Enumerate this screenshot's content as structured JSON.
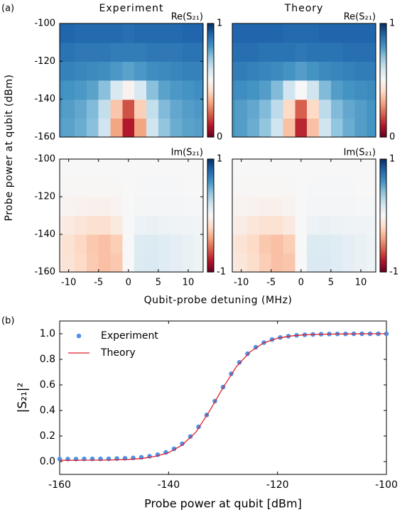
{
  "panel_labels": [
    "(a)",
    "(b)"
  ],
  "chart_data": [
    {
      "type": "heatmap",
      "title": "Experiment",
      "label": "Re(S₂₁)",
      "ylabel": "Probe power at qubit (dBm)",
      "colormap": "RdBu",
      "x": [
        -12,
        -10,
        -8,
        -6,
        -4,
        -2,
        0,
        2,
        4,
        6,
        8,
        10,
        12
      ],
      "y": [
        -155,
        -145,
        -135,
        -125,
        -115,
        -105
      ],
      "xlim": [
        -11.5,
        12.5
      ],
      "ylim": [
        -160,
        -100
      ],
      "yticks": [
        -100,
        -120,
        -140,
        -160
      ],
      "clim": [
        0,
        1
      ],
      "cticks": [
        0,
        1
      ],
      "z": [
        [
          0.78,
          0.77,
          0.75,
          0.71,
          0.6,
          0.3,
          0.1,
          0.3,
          0.6,
          0.7,
          0.75,
          0.77,
          0.78
        ],
        [
          0.79,
          0.78,
          0.76,
          0.72,
          0.62,
          0.36,
          0.18,
          0.38,
          0.62,
          0.72,
          0.76,
          0.78,
          0.79
        ],
        [
          0.81,
          0.8,
          0.79,
          0.77,
          0.71,
          0.58,
          0.48,
          0.58,
          0.71,
          0.77,
          0.79,
          0.8,
          0.81
        ],
        [
          0.84,
          0.84,
          0.83,
          0.82,
          0.81,
          0.79,
          0.77,
          0.79,
          0.81,
          0.82,
          0.83,
          0.84,
          0.84
        ],
        [
          0.87,
          0.87,
          0.86,
          0.86,
          0.86,
          0.85,
          0.85,
          0.85,
          0.86,
          0.86,
          0.86,
          0.87,
          0.87
        ],
        [
          0.9,
          0.9,
          0.89,
          0.89,
          0.89,
          0.89,
          0.88,
          0.89,
          0.89,
          0.89,
          0.89,
          0.9,
          0.9
        ]
      ]
    },
    {
      "type": "heatmap",
      "title": "Theory",
      "label": "Re(S₂₁)",
      "colormap": "RdBu",
      "x": [
        -12,
        -10,
        -8,
        -6,
        -4,
        -2,
        0,
        2,
        4,
        6,
        8,
        10,
        12
      ],
      "y": [
        -155,
        -145,
        -135,
        -125,
        -115,
        -105
      ],
      "xlim": [
        -11.5,
        12.5
      ],
      "ylim": [
        -160,
        -100
      ],
      "clim": [
        0,
        1
      ],
      "cticks": [
        0,
        1
      ],
      "z": [
        [
          0.8,
          0.78,
          0.75,
          0.7,
          0.6,
          0.35,
          0.12,
          0.35,
          0.6,
          0.7,
          0.75,
          0.78,
          0.8
        ],
        [
          0.8,
          0.78,
          0.76,
          0.72,
          0.63,
          0.4,
          0.2,
          0.4,
          0.63,
          0.72,
          0.76,
          0.78,
          0.8
        ],
        [
          0.82,
          0.81,
          0.8,
          0.78,
          0.72,
          0.6,
          0.5,
          0.6,
          0.72,
          0.78,
          0.8,
          0.81,
          0.82
        ],
        [
          0.85,
          0.85,
          0.84,
          0.83,
          0.82,
          0.8,
          0.78,
          0.8,
          0.82,
          0.83,
          0.84,
          0.85,
          0.85
        ],
        [
          0.88,
          0.88,
          0.88,
          0.87,
          0.87,
          0.87,
          0.86,
          0.87,
          0.87,
          0.87,
          0.88,
          0.88,
          0.88
        ],
        [
          0.9,
          0.9,
          0.9,
          0.9,
          0.9,
          0.89,
          0.89,
          0.89,
          0.9,
          0.9,
          0.9,
          0.9,
          0.9
        ]
      ]
    },
    {
      "type": "heatmap",
      "label": "Im(S₂₁)",
      "xlabel": "Qubit-probe detuning (MHz)",
      "colormap": "RdBu",
      "x": [
        -12,
        -10,
        -8,
        -6,
        -4,
        -2,
        0,
        2,
        4,
        6,
        8,
        10,
        12
      ],
      "y": [
        -155,
        -145,
        -135,
        -125,
        -115,
        -105
      ],
      "xlim": [
        -11.5,
        12.5
      ],
      "ylim": [
        -160,
        -100
      ],
      "xticks": [
        -10,
        -5,
        0,
        5,
        10
      ],
      "yticks": [
        -100,
        -120,
        -140,
        -160
      ],
      "clim": [
        -1,
        1
      ],
      "cticks": [
        -1,
        1
      ],
      "z": [
        [
          -0.1,
          -0.14,
          -0.2,
          -0.26,
          -0.3,
          -0.27,
          0,
          0.14,
          0.15,
          0.12,
          0.1,
          0.07,
          0.05
        ],
        [
          -0.11,
          -0.15,
          -0.21,
          -0.27,
          -0.3,
          -0.25,
          0,
          0.13,
          0.14,
          0.12,
          0.1,
          0.07,
          0.05
        ],
        [
          -0.06,
          -0.09,
          -0.13,
          -0.16,
          -0.16,
          -0.1,
          0,
          0.06,
          0.07,
          0.06,
          0.05,
          0.04,
          0.03
        ],
        [
          -0.02,
          -0.03,
          -0.04,
          -0.05,
          -0.05,
          -0.03,
          0,
          0.02,
          0.02,
          0.02,
          0.02,
          0.01,
          0.01
        ],
        [
          -0.01,
          -0.01,
          -0.01,
          -0.01,
          -0.01,
          -0.01,
          0,
          0.01,
          0.01,
          0.01,
          0.01,
          0,
          0
        ],
        [
          0,
          0,
          0,
          0,
          0,
          0,
          0,
          0,
          0,
          0,
          0,
          0,
          0
        ]
      ]
    },
    {
      "type": "heatmap",
      "label": "Im(S₂₁)",
      "colormap": "RdBu",
      "x": [
        -12,
        -10,
        -8,
        -6,
        -4,
        -2,
        0,
        2,
        4,
        6,
        8,
        10,
        12
      ],
      "y": [
        -155,
        -145,
        -135,
        -125,
        -115,
        -105
      ],
      "xlim": [
        -11.5,
        12.5
      ],
      "ylim": [
        -160,
        -100
      ],
      "xticks": [
        -10,
        -5,
        0,
        5,
        10
      ],
      "clim": [
        -1,
        1
      ],
      "cticks": [
        -1,
        1
      ],
      "z": [
        [
          -0.08,
          -0.12,
          -0.18,
          -0.25,
          -0.3,
          -0.28,
          0,
          0.15,
          0.15,
          0.12,
          0.1,
          0.07,
          0.05
        ],
        [
          -0.1,
          -0.14,
          -0.2,
          -0.27,
          -0.3,
          -0.25,
          0,
          0.14,
          0.14,
          0.12,
          0.1,
          0.07,
          0.05
        ],
        [
          -0.05,
          -0.08,
          -0.12,
          -0.15,
          -0.15,
          -0.1,
          0,
          0.06,
          0.07,
          0.06,
          0.05,
          0.04,
          0.03
        ],
        [
          -0.02,
          -0.03,
          -0.04,
          -0.05,
          -0.05,
          -0.03,
          0,
          0.02,
          0.02,
          0.02,
          0.02,
          0.01,
          0.01
        ],
        [
          -0.01,
          -0.01,
          -0.01,
          -0.01,
          -0.01,
          -0.01,
          0,
          0.01,
          0.01,
          0.01,
          0.01,
          0,
          0
        ],
        [
          0,
          0,
          0,
          0,
          0,
          0,
          0,
          0,
          0,
          0,
          0,
          0,
          0
        ]
      ]
    },
    {
      "type": "combo",
      "xlabel": "Probe power at qubit [dBm]",
      "ylabel": "|S₂₁|²",
      "legend": "upper left",
      "xlim": [
        -160,
        -100
      ],
      "ylim": [
        -0.1,
        1.1
      ],
      "xticks": [
        -160,
        -140,
        -120,
        -100
      ],
      "yticks": [
        {
          "value": 0,
          "label": "0.0"
        },
        0.2,
        0.4,
        0.6,
        0.8,
        {
          "value": 1,
          "label": "1.0"
        }
      ],
      "series": [
        {
          "name": "Experiment",
          "type": "scatter",
          "color": "#4d94e8",
          "x": [
            -160,
            -158.5,
            -157,
            -155.5,
            -154,
            -152.5,
            -151,
            -149.5,
            -148,
            -146.5,
            -145,
            -143.5,
            -142,
            -140.5,
            -139,
            -137.5,
            -136,
            -134.5,
            -133,
            -131.5,
            -130,
            -128.5,
            -127,
            -125.5,
            -124,
            -122.5,
            -121,
            -119.5,
            -118,
            -116.5,
            -115,
            -113.5,
            -112,
            -110.5,
            -109,
            -107.5,
            -106,
            -104.5,
            -103,
            -101.5,
            -100
          ],
          "values": [
            0.02,
            0.02,
            0.02,
            0.021,
            0.021,
            0.021,
            0.022,
            0.024,
            0.026,
            0.029,
            0.034,
            0.042,
            0.054,
            0.072,
            0.1,
            0.14,
            0.196,
            0.272,
            0.365,
            0.473,
            0.583,
            0.687,
            0.776,
            0.844,
            0.895,
            0.931,
            0.955,
            0.971,
            0.981,
            0.988,
            0.992,
            0.995,
            0.997,
            0.998,
            0.999,
            0.999,
            1,
            1,
            1,
            1,
            1
          ]
        },
        {
          "name": "Theory",
          "type": "line",
          "color": "#e0202a",
          "x": [
            -160,
            -157.5,
            -155,
            -152.5,
            -150,
            -147.5,
            -145,
            -142.5,
            -140,
            -137.5,
            -135,
            -132.5,
            -130,
            -127.5,
            -125,
            -122.5,
            -120,
            -117.5,
            -115,
            -112.5,
            -110,
            -107.5,
            -105,
            -102.5,
            -100
          ],
          "values": [
            0.01,
            0.01,
            0.011,
            0.011,
            0.013,
            0.017,
            0.024,
            0.04,
            0.07,
            0.13,
            0.23,
            0.394,
            0.579,
            0.746,
            0.86,
            0.93,
            0.965,
            0.983,
            0.992,
            0.996,
            0.998,
            0.999,
            1,
            1,
            1
          ]
        }
      ]
    }
  ]
}
